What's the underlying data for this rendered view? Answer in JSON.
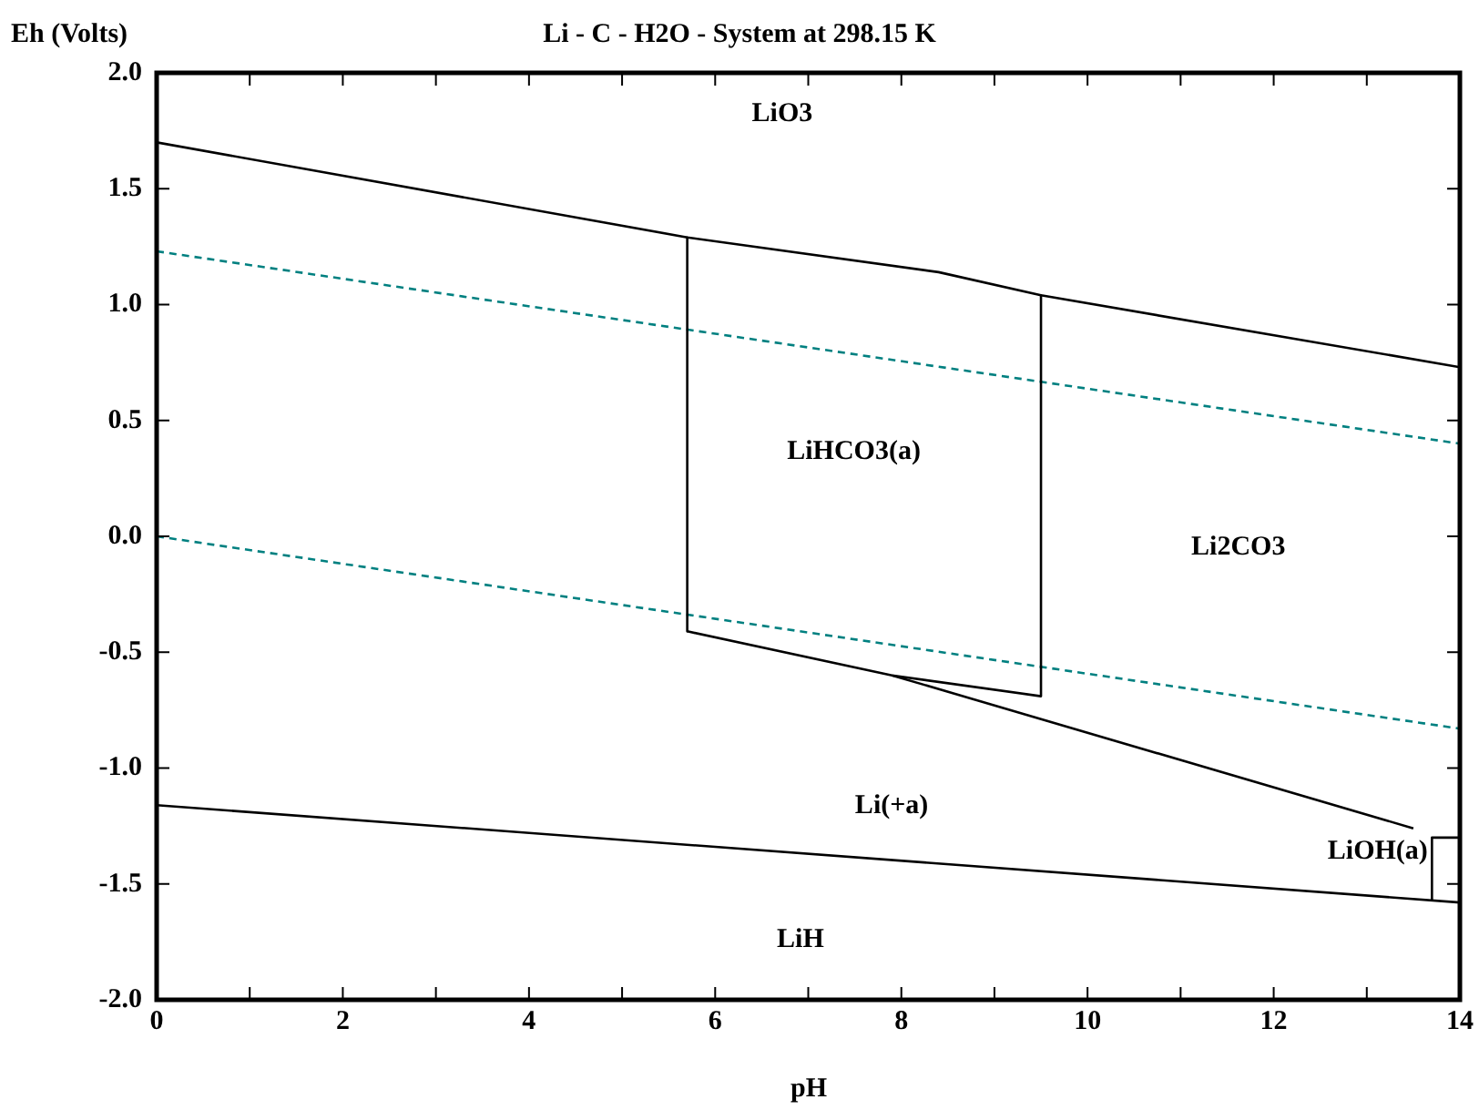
{
  "chart_data": {
    "type": "line",
    "title": "Li - C - H2O - System at 298.15 K",
    "xlabel": "pH",
    "ylabel": "Eh (Volts)",
    "xlim": [
      0,
      14
    ],
    "ylim": [
      -2,
      2
    ],
    "xticks": [
      0,
      {
        "value": 1,
        "label": null
      },
      2,
      {
        "value": 3,
        "label": null
      },
      4,
      {
        "value": 5,
        "label": null
      },
      6,
      {
        "value": 7,
        "label": null
      },
      8,
      {
        "value": 9,
        "label": null
      },
      10,
      {
        "value": 11,
        "label": null
      },
      12,
      {
        "value": 13,
        "label": null
      },
      14
    ],
    "yticks": [
      {
        "value": -2,
        "label": "-2.0"
      },
      {
        "value": -1.5,
        "label": "-1.5"
      },
      {
        "value": -1,
        "label": "-1.0"
      },
      {
        "value": -0.5,
        "label": "-0.5"
      },
      {
        "value": 0,
        "label": "0.0"
      },
      {
        "value": 0.5,
        "label": "0.5"
      },
      {
        "value": 1,
        "label": "1.0"
      },
      {
        "value": 1.5,
        "label": "1.5"
      },
      {
        "value": 2,
        "label": "2.0"
      }
    ],
    "grid": false,
    "legend": false,
    "marker": "none",
    "series": [
      {
        "color": "#000000",
        "line_style": "solid",
        "x": [
          0,
          5.7,
          8.4,
          9.5,
          14
        ],
        "values": [
          1.7,
          1.29,
          1.14,
          1.04,
          0.73
        ]
      },
      {
        "color": "#000000",
        "line_style": "solid",
        "x": [
          5.7,
          5.7
        ],
        "values": [
          1.29,
          -0.41
        ]
      },
      {
        "color": "#000000",
        "line_style": "solid",
        "x": [
          9.5,
          9.5
        ],
        "values": [
          1.04,
          -0.69
        ]
      },
      {
        "color": "#000000",
        "line_style": "solid",
        "x": [
          5.7,
          7.9,
          9.5
        ],
        "values": [
          -0.41,
          -0.6,
          -0.69
        ]
      },
      {
        "color": "#000000",
        "line_style": "solid",
        "x": [
          7.9,
          13.5
        ],
        "values": [
          -0.6,
          -1.26
        ]
      },
      {
        "color": "#000000",
        "line_style": "solid",
        "x": [
          0,
          14
        ],
        "values": [
          -1.16,
          -1.58
        ]
      },
      {
        "color": "#000000",
        "line_style": "solid",
        "x": [
          13.7,
          13.7,
          14
        ],
        "values": [
          -1.57,
          -1.3,
          -1.3
        ]
      },
      {
        "color": "#008080",
        "line_style": "dashed",
        "x": [
          0,
          14
        ],
        "values": [
          1.23,
          0.4
        ]
      },
      {
        "color": "#008080",
        "line_style": "dashed",
        "x": [
          0,
          14
        ],
        "values": [
          0,
          -0.83
        ]
      }
    ],
    "annotations": [
      "LiO3",
      "LiHCO3(a)",
      "Li2CO3",
      "Li(+a)",
      "LiOH(a)",
      "LiH"
    ]
  }
}
